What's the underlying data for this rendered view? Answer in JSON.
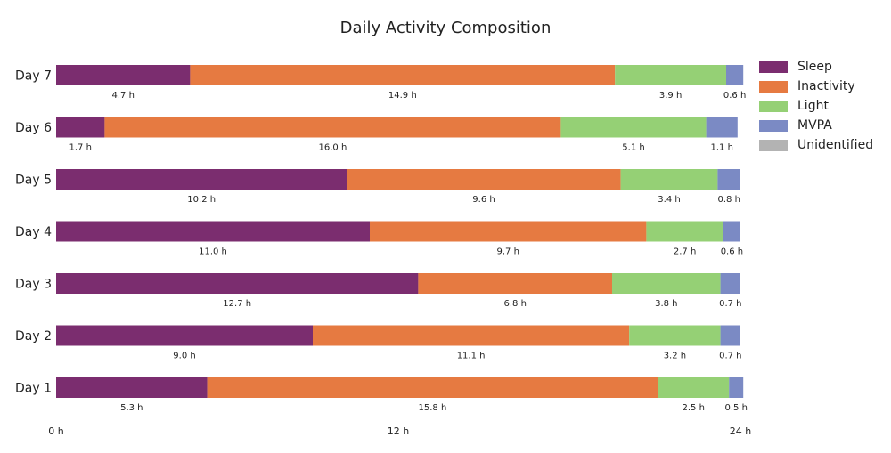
{
  "chart_data": {
    "type": "bar",
    "orientation": "horizontal",
    "stacked": true,
    "title": "Daily Activity Composition",
    "categories": [
      "Day 7",
      "Day 6",
      "Day 5",
      "Day 4",
      "Day 3",
      "Day 2",
      "Day 1"
    ],
    "series": [
      {
        "name": "Sleep",
        "color": "#7B2D6F",
        "values": [
          4.7,
          1.7,
          10.2,
          11.0,
          12.7,
          9.0,
          5.3
        ]
      },
      {
        "name": "Inactivity",
        "color": "#E67A41",
        "values": [
          14.9,
          16.0,
          9.6,
          9.7,
          6.8,
          11.1,
          15.8
        ]
      },
      {
        "name": "Light",
        "color": "#95D075",
        "values": [
          3.9,
          5.1,
          3.4,
          2.7,
          3.8,
          3.2,
          2.5
        ]
      },
      {
        "name": "MVPA",
        "color": "#7B8AC4",
        "values": [
          0.6,
          1.1,
          0.8,
          0.6,
          0.7,
          0.7,
          0.5
        ]
      },
      {
        "name": "Unidentified",
        "color": "#B3B3B3",
        "values": [
          0,
          0,
          0,
          0,
          0,
          0,
          0
        ]
      }
    ],
    "segment_labels": [
      [
        "4.7 h",
        "14.9 h",
        "3.9 h",
        "0.6 h"
      ],
      [
        "1.7 h",
        "16.0 h",
        "5.1 h",
        "1.1 h"
      ],
      [
        "10.2 h",
        "9.6 h",
        "3.4 h",
        "0.8 h"
      ],
      [
        "11.0 h",
        "9.7 h",
        "2.7 h",
        "0.6 h"
      ],
      [
        "12.7 h",
        "6.8 h",
        "3.8 h",
        "0.7 h"
      ],
      [
        "9.0 h",
        "11.1 h",
        "3.2 h",
        "0.7 h"
      ],
      [
        "5.3 h",
        "15.8 h",
        "2.5 h",
        "0.5 h"
      ]
    ],
    "x_ticks": [
      0,
      12,
      24
    ],
    "x_tick_labels": [
      "0 h",
      "12 h",
      "24 h"
    ],
    "xlim": [
      0,
      24
    ],
    "grid": false,
    "legend_position": "right"
  }
}
